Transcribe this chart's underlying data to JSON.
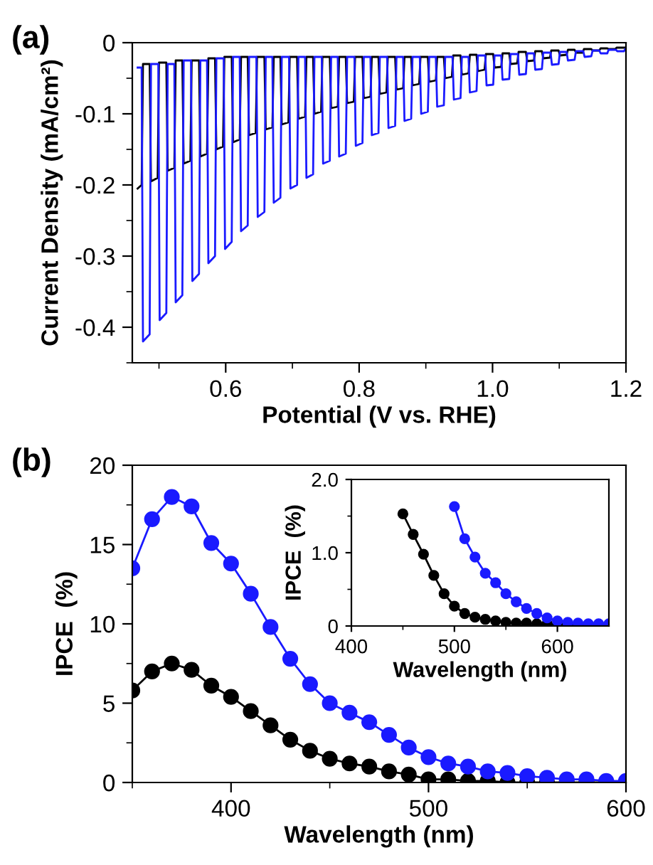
{
  "chart_data": [
    {
      "type": "line",
      "title": "(a)",
      "xlabel": "Potential (V vs. RHE)",
      "ylabel": "Current Density (mA/cm²)",
      "xlim": [
        0.46,
        1.2
      ],
      "ylim": [
        -0.45,
        0
      ],
      "xticks": [
        {
          "value": 0.5,
          "label": null
        },
        {
          "value": 0.6,
          "label": "0.6"
        },
        {
          "value": 0.7,
          "label": null
        },
        {
          "value": 0.8,
          "label": "0.8"
        },
        {
          "value": 0.9,
          "label": null
        },
        {
          "value": 1.0,
          "label": "1.0"
        },
        {
          "value": 1.1,
          "label": null
        },
        {
          "value": 1.2,
          "label": "1.2"
        }
      ],
      "yticks": [
        {
          "value": -0.45,
          "label": null
        },
        {
          "value": -0.4,
          "label": "-0.4"
        },
        {
          "value": -0.35,
          "label": null
        },
        {
          "value": -0.3,
          "label": "-0.3"
        },
        {
          "value": -0.25,
          "label": null
        },
        {
          "value": -0.2,
          "label": "-0.2"
        },
        {
          "value": -0.15,
          "label": null
        },
        {
          "value": -0.1,
          "label": "-0.1"
        },
        {
          "value": -0.05,
          "label": null
        },
        {
          "value": 0,
          "label": "0"
        }
      ],
      "grid": false,
      "legend": false,
      "marker": "none",
      "line_style": "solid",
      "series": [
        {
          "color": "#000000",
          "x": [
            0.468,
            0.474,
            0.476,
            0.486,
            0.488,
            0.498,
            0.5,
            0.511,
            0.513,
            0.523,
            0.525,
            0.535,
            0.537,
            0.547,
            0.549,
            0.56,
            0.562,
            0.572,
            0.574,
            0.584,
            0.586,
            0.596,
            0.598,
            0.609,
            0.611,
            0.621,
            0.623,
            0.633,
            0.635,
            0.645,
            0.647,
            0.658,
            0.66,
            0.67,
            0.672,
            0.682,
            0.684,
            0.694,
            0.696,
            0.707,
            0.709,
            0.719,
            0.721,
            0.731,
            0.733,
            0.743,
            0.745,
            0.756,
            0.758,
            0.768,
            0.77,
            0.78,
            0.782,
            0.792,
            0.794,
            0.805,
            0.807,
            0.817,
            0.819,
            0.829,
            0.831,
            0.841,
            0.843,
            0.854,
            0.856,
            0.866,
            0.868,
            0.878,
            0.88,
            0.89,
            0.892,
            0.903,
            0.905,
            0.915,
            0.917,
            0.927,
            0.929,
            0.939,
            0.941,
            0.952,
            0.954,
            0.964,
            0.966,
            0.976,
            0.978,
            0.988,
            0.99,
            1.001,
            1.003,
            1.013,
            1.015,
            1.025,
            1.027,
            1.037,
            1.039,
            1.05,
            1.052,
            1.062,
            1.064,
            1.074,
            1.076,
            1.086,
            1.088,
            1.099,
            1.101,
            1.111,
            1.113,
            1.123,
            1.125,
            1.135,
            1.137,
            1.148,
            1.15,
            1.16,
            1.162,
            1.172,
            1.174,
            1.184,
            1.186,
            1.2
          ],
          "values": [
            -0.205,
            -0.2,
            -0.03,
            -0.03,
            -0.195,
            -0.19,
            -0.028,
            -0.028,
            -0.18,
            -0.176,
            -0.025,
            -0.025,
            -0.17,
            -0.166,
            -0.025,
            -0.025,
            -0.16,
            -0.156,
            -0.022,
            -0.022,
            -0.15,
            -0.146,
            -0.02,
            -0.02,
            -0.14,
            -0.136,
            -0.02,
            -0.02,
            -0.13,
            -0.127,
            -0.02,
            -0.02,
            -0.122,
            -0.119,
            -0.02,
            -0.02,
            -0.115,
            -0.112,
            -0.02,
            -0.02,
            -0.107,
            -0.104,
            -0.02,
            -0.02,
            -0.1,
            -0.097,
            -0.02,
            -0.02,
            -0.092,
            -0.09,
            -0.02,
            -0.02,
            -0.085,
            -0.083,
            -0.02,
            -0.02,
            -0.078,
            -0.076,
            -0.02,
            -0.02,
            -0.072,
            -0.07,
            -0.02,
            -0.02,
            -0.066,
            -0.064,
            -0.02,
            -0.02,
            -0.06,
            -0.058,
            -0.02,
            -0.02,
            -0.055,
            -0.053,
            -0.02,
            -0.02,
            -0.05,
            -0.048,
            -0.018,
            -0.018,
            -0.045,
            -0.043,
            -0.017,
            -0.017,
            -0.04,
            -0.038,
            -0.016,
            -0.016,
            -0.035,
            -0.034,
            -0.015,
            -0.015,
            -0.03,
            -0.029,
            -0.013,
            -0.013,
            -0.026,
            -0.025,
            -0.012,
            -0.012,
            -0.022,
            -0.021,
            -0.011,
            -0.011,
            -0.018,
            -0.017,
            -0.01,
            -0.01,
            -0.014,
            -0.014,
            -0.009,
            -0.009,
            -0.011,
            -0.011,
            -0.008,
            -0.008,
            -0.009,
            -0.009,
            -0.007,
            -0.007
          ]
        },
        {
          "color": "#1a1aff",
          "x": [
            0.468,
            0.474,
            0.476,
            0.486,
            0.488,
            0.499,
            0.501,
            0.511,
            0.513,
            0.523,
            0.525,
            0.535,
            0.537,
            0.548,
            0.55,
            0.56,
            0.562,
            0.572,
            0.574,
            0.584,
            0.586,
            0.597,
            0.599,
            0.609,
            0.611,
            0.621,
            0.623,
            0.633,
            0.635,
            0.646,
            0.648,
            0.658,
            0.66,
            0.67,
            0.672,
            0.682,
            0.684,
            0.695,
            0.697,
            0.707,
            0.709,
            0.719,
            0.721,
            0.731,
            0.733,
            0.744,
            0.746,
            0.756,
            0.758,
            0.768,
            0.77,
            0.78,
            0.782,
            0.793,
            0.795,
            0.805,
            0.807,
            0.817,
            0.819,
            0.829,
            0.831,
            0.842,
            0.844,
            0.854,
            0.856,
            0.866,
            0.868,
            0.878,
            0.88,
            0.891,
            0.893,
            0.903,
            0.905,
            0.915,
            0.917,
            0.927,
            0.929,
            0.94,
            0.942,
            0.952,
            0.954,
            0.964,
            0.966,
            0.976,
            0.978,
            0.989,
            0.991,
            1.001,
            1.003,
            1.013,
            1.015,
            1.025,
            1.027,
            1.038,
            1.04,
            1.05,
            1.052,
            1.062,
            1.064,
            1.074,
            1.076,
            1.087,
            1.089,
            1.099,
            1.101,
            1.111,
            1.113,
            1.123,
            1.125,
            1.136,
            1.138,
            1.148,
            1.15,
            1.16,
            1.162,
            1.172,
            1.174,
            1.185,
            1.187,
            1.197,
            1.199
          ],
          "values": [
            -0.035,
            -0.035,
            -0.42,
            -0.41,
            -0.03,
            -0.03,
            -0.39,
            -0.38,
            -0.03,
            -0.03,
            -0.365,
            -0.355,
            -0.025,
            -0.025,
            -0.335,
            -0.325,
            -0.025,
            -0.025,
            -0.31,
            -0.3,
            -0.022,
            -0.022,
            -0.29,
            -0.28,
            -0.02,
            -0.02,
            -0.265,
            -0.257,
            -0.02,
            -0.02,
            -0.245,
            -0.238,
            -0.02,
            -0.02,
            -0.225,
            -0.218,
            -0.02,
            -0.02,
            -0.205,
            -0.2,
            -0.02,
            -0.02,
            -0.19,
            -0.185,
            -0.02,
            -0.02,
            -0.17,
            -0.166,
            -0.02,
            -0.02,
            -0.16,
            -0.156,
            -0.02,
            -0.02,
            -0.145,
            -0.141,
            -0.02,
            -0.02,
            -0.13,
            -0.127,
            -0.02,
            -0.02,
            -0.12,
            -0.117,
            -0.02,
            -0.02,
            -0.11,
            -0.107,
            -0.02,
            -0.02,
            -0.1,
            -0.097,
            -0.02,
            -0.02,
            -0.09,
            -0.088,
            -0.02,
            -0.02,
            -0.08,
            -0.078,
            -0.02,
            -0.02,
            -0.07,
            -0.068,
            -0.018,
            -0.018,
            -0.06,
            -0.059,
            -0.018,
            -0.018,
            -0.052,
            -0.051,
            -0.016,
            -0.016,
            -0.045,
            -0.044,
            -0.015,
            -0.015,
            -0.038,
            -0.037,
            -0.014,
            -0.014,
            -0.031,
            -0.03,
            -0.013,
            -0.013,
            -0.025,
            -0.024,
            -0.012,
            -0.012,
            -0.02,
            -0.019,
            -0.011,
            -0.011,
            -0.015,
            -0.015,
            -0.01,
            -0.01,
            -0.012,
            -0.012,
            -0.009
          ]
        }
      ]
    },
    {
      "type": "line",
      "title": "(b)",
      "xlabel": "Wavelength (nm)",
      "ylabel": "IPCE  (%)",
      "xlim": [
        350,
        600
      ],
      "ylim": [
        0,
        20
      ],
      "xticks": [
        {
          "value": 350,
          "label": null
        },
        400,
        {
          "value": 450,
          "label": null
        },
        500,
        {
          "value": 550,
          "label": null
        },
        600
      ],
      "yticks": [
        0,
        {
          "value": 2.5,
          "label": null
        },
        5,
        {
          "value": 7.5,
          "label": null
        },
        10,
        {
          "value": 12.5,
          "label": null
        },
        15,
        {
          "value": 17.5,
          "label": null
        },
        20
      ],
      "grid": false,
      "legend": false,
      "marker": "circle",
      "line_style": "solid",
      "x": [
        350,
        360,
        370,
        380,
        390,
        400,
        410,
        420,
        430,
        440,
        450,
        460,
        470,
        480,
        490,
        500,
        510,
        520,
        530,
        540,
        550,
        560,
        570,
        580,
        590,
        600
      ],
      "series": [
        {
          "color": "#000000",
          "values": [
            5.8,
            7.0,
            7.5,
            7.1,
            6.1,
            5.4,
            4.5,
            3.6,
            2.7,
            2.0,
            1.5,
            1.2,
            1.0,
            0.7,
            0.5,
            0.2,
            0.2,
            0.1,
            0.1,
            0.0,
            0.0,
            0.0,
            0.0,
            0.0,
            0.0,
            0.0
          ]
        },
        {
          "color": "#1a1aff",
          "values": [
            13.5,
            16.6,
            18.0,
            17.4,
            15.1,
            13.8,
            11.9,
            9.8,
            7.8,
            6.2,
            5.0,
            4.4,
            3.8,
            3.0,
            2.2,
            1.6,
            1.2,
            1.0,
            0.7,
            0.6,
            0.4,
            0.3,
            0.2,
            0.2,
            0.1,
            0.1
          ]
        }
      ]
    },
    {
      "type": "line",
      "xlabel": "Wavelength (nm)",
      "ylabel": "IPCE  (%)",
      "xlim": [
        400,
        650
      ],
      "ylim": [
        0,
        2
      ],
      "xticks": [
        400,
        {
          "value": 450,
          "label": null
        },
        500,
        {
          "value": 550,
          "label": null
        },
        600
      ],
      "yticks": [
        0,
        {
          "value": 0.5,
          "label": null
        },
        {
          "value": 1,
          "label": "1.0"
        },
        {
          "value": 1.5,
          "label": null
        },
        {
          "value": 2,
          "label": "2.0"
        }
      ],
      "grid": false,
      "legend": false,
      "marker": "circle",
      "line_style": "solid",
      "series": [
        {
          "color": "#000000",
          "x": [
            450,
            460,
            470,
            480,
            490,
            500,
            510,
            520,
            530,
            540,
            550,
            560,
            570,
            580,
            590,
            600,
            610,
            620,
            630,
            640,
            650
          ],
          "values": [
            1.53,
            1.25,
            0.98,
            0.69,
            0.44,
            0.27,
            0.17,
            0.12,
            0.09,
            0.07,
            0.05,
            0.04,
            0.04,
            0.03,
            0.03,
            0.02,
            0.02,
            0.02,
            0.02,
            0.02,
            0.02
          ]
        },
        {
          "color": "#1a1aff",
          "x": [
            500,
            510,
            520,
            530,
            540,
            550,
            560,
            570,
            580,
            590,
            600,
            610,
            620,
            630,
            640,
            650
          ],
          "values": [
            1.63,
            1.19,
            0.94,
            0.72,
            0.59,
            0.44,
            0.33,
            0.24,
            0.17,
            0.11,
            0.07,
            0.05,
            0.04,
            0.03,
            0.03,
            0.03
          ]
        }
      ]
    }
  ]
}
